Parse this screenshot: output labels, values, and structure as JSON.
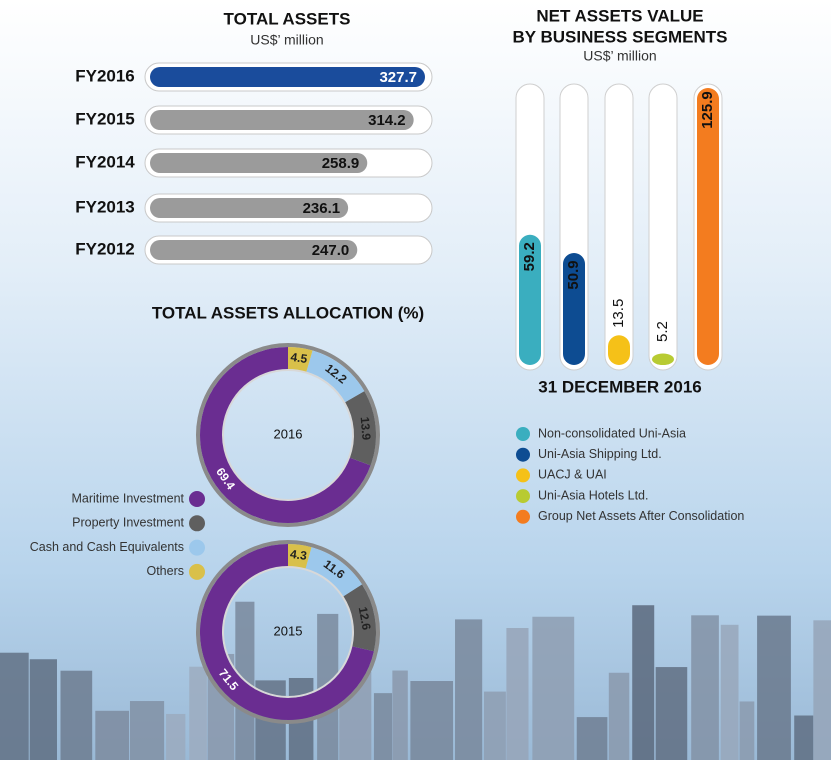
{
  "chart_data": [
    {
      "type": "hbar",
      "title": "TOTAL ASSETS",
      "subtitle": "US$’ million",
      "categories": [
        "FY2016",
        "FY2015",
        "FY2014",
        "FY2013",
        "FY2012"
      ],
      "values": [
        327.7,
        314.2,
        258.9,
        236.1,
        247.0
      ],
      "value_labels": [
        "327.7",
        "314.2",
        "258.9",
        "236.1",
        "247.0"
      ],
      "colors": [
        "#1a4c9c",
        "#9b9b9b",
        "#9b9b9b",
        "#9b9b9b",
        "#9b9b9b"
      ]
    },
    {
      "type": "bar",
      "title": [
        "NET ASSETS VALUE",
        "BY BUSINESS SEGMENTS"
      ],
      "subtitle": "US$’ million",
      "xlabel": "31 DECEMBER 2016",
      "categories": [
        "Non-consolidated Uni-Asia",
        "Uni-Asia Shipping Ltd.",
        "UACJ & UAI",
        "Uni-Asia Hotels Ltd.",
        "Group Net Assets After Consolidation"
      ],
      "values": [
        59.2,
        50.9,
        13.5,
        5.2,
        125.9
      ],
      "colors": [
        "#3aaebf",
        "#0d4c92",
        "#f5c118",
        "#b8cb32",
        "#f37c1f"
      ]
    },
    {
      "type": "pie",
      "title": "TOTAL ASSETS ALLOCATION (%)",
      "categories": [
        "Maritime Investment",
        "Property Investment",
        "Cash and Cash Equivalents",
        "Others"
      ],
      "colors": [
        "#6a2d91",
        "#5f5f5f",
        "#9cc8ec",
        "#d9c04a"
      ],
      "series": [
        {
          "name": "2016",
          "values": [
            69.4,
            13.9,
            12.2,
            4.5
          ]
        },
        {
          "name": "2015",
          "values": [
            71.5,
            12.6,
            11.6,
            4.3
          ]
        }
      ]
    }
  ]
}
